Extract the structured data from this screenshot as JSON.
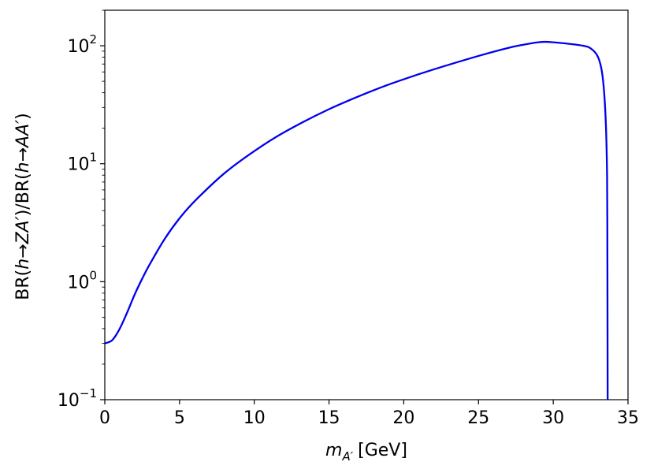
{
  "chart_data": {
    "type": "line",
    "xlabel": {
      "main": "m",
      "sub": "A′",
      "unit": "[GeV]"
    },
    "ylabel": {
      "t1": "BR(",
      "t2": "h",
      "t3": "→",
      "t4": "ZA′",
      "t5": ")/BR(",
      "t6": "h",
      "t7": "→",
      "t8": "AA′",
      "t9": ")"
    },
    "xlim": [
      0,
      35
    ],
    "ylim": [
      0.1,
      200
    ],
    "yscale": "log",
    "grid": false,
    "x_ticks": [
      {
        "value": 0,
        "label": "0"
      },
      {
        "value": 5,
        "label": "5"
      },
      {
        "value": 10,
        "label": "10"
      },
      {
        "value": 15,
        "label": "15"
      },
      {
        "value": 20,
        "label": "20"
      },
      {
        "value": 25,
        "label": "25"
      },
      {
        "value": 30,
        "label": "30"
      },
      {
        "value": 35,
        "label": "35"
      }
    ],
    "y_ticks": [
      {
        "value": 0.1,
        "base": "10",
        "exp": "−1"
      },
      {
        "value": 1,
        "base": "10",
        "exp": "0"
      },
      {
        "value": 10,
        "base": "10",
        "exp": "1"
      },
      {
        "value": 100,
        "base": "10",
        "exp": "2"
      }
    ],
    "series": [
      {
        "color": "#0000ee",
        "x": [
          0,
          0.5,
          1,
          1.5,
          2,
          2.5,
          3,
          4,
          5,
          6,
          8,
          10,
          12,
          15,
          18,
          20,
          22,
          25,
          27,
          28,
          29,
          29.5,
          30,
          31,
          32,
          32.5,
          33,
          33.3,
          33.5,
          33.6,
          33.62,
          33.63,
          33.64
        ],
        "y": [
          0.3,
          0.32,
          0.4,
          0.55,
          0.78,
          1.06,
          1.4,
          2.3,
          3.45,
          4.8,
          8.3,
          12.8,
          18.5,
          29,
          42,
          52,
          63,
          82,
          96,
          102,
          107,
          108,
          107,
          104,
          100,
          95,
          80,
          55,
          25,
          8,
          2,
          0.5,
          0.1
        ]
      }
    ]
  }
}
